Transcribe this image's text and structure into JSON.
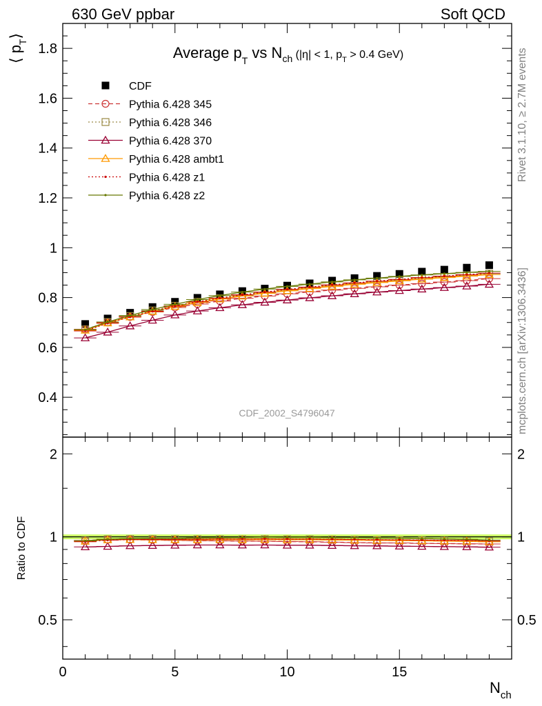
{
  "header": {
    "left": "630 GeV ppbar",
    "right": "Soft QCD"
  },
  "side_labels": {
    "rivet": "Rivet 3.1.10, ≥ 2.7M events",
    "mcplots": "mcplots.cern.ch [arXiv:1306.3436]"
  },
  "watermark": "CDF_2002_S4796047",
  "chart_data": [
    {
      "type": "scatter",
      "panel": "main",
      "title": {
        "main": "Average p",
        "main_sub": "T",
        "vs": " vs N",
        "vs_sub": "ch",
        "cut_a": " (|η| < 1, p",
        "cut_sub": "T",
        "cut_b": " > 0.4 GeV)"
      },
      "ylabel": "⟨ p",
      "ylabel_sub": "T",
      "ylabel_end": "⟩",
      "xlim": [
        0,
        20
      ],
      "ylim": [
        0.24,
        1.9
      ],
      "yticks": [
        0.4,
        0.6,
        0.8,
        1.0,
        1.2,
        1.4,
        1.6,
        1.8
      ],
      "ytick_labels": [
        "0.4",
        "0.6",
        "0.8",
        "1",
        "1.2",
        "1.4",
        "1.6",
        "1.8"
      ],
      "legend_position": "top-left",
      "x": [
        1,
        2,
        3,
        4,
        5,
        6,
        7,
        8,
        9,
        10,
        11,
        12,
        13,
        14,
        15,
        16,
        17,
        18,
        19
      ],
      "series": [
        {
          "name": "CDF",
          "color": "#000000",
          "marker": "square",
          "line": "none",
          "values": [
            0.694,
            0.716,
            0.739,
            0.762,
            0.783,
            0.799,
            0.813,
            0.826,
            0.836,
            0.848,
            0.857,
            0.868,
            0.878,
            0.887,
            0.895,
            0.904,
            0.912,
            0.92,
            0.93
          ]
        },
        {
          "name": "Pythia 6.428 345",
          "color": "#cc3333",
          "marker": "circle",
          "line": "dashed",
          "values": [
            0.673,
            0.7,
            0.722,
            0.742,
            0.76,
            0.774,
            0.786,
            0.797,
            0.806,
            0.815,
            0.823,
            0.83,
            0.837,
            0.843,
            0.85,
            0.856,
            0.862,
            0.868,
            0.876
          ]
        },
        {
          "name": "Pythia 6.428 346",
          "color": "#998844",
          "marker": "square-open",
          "line": "dotted",
          "values": [
            0.672,
            0.702,
            0.726,
            0.748,
            0.767,
            0.783,
            0.797,
            0.809,
            0.82,
            0.83,
            0.839,
            0.848,
            0.856,
            0.863,
            0.87,
            0.877,
            0.883,
            0.889,
            0.896
          ]
        },
        {
          "name": "Pythia 6.428 370",
          "color": "#990033",
          "marker": "triangle-open",
          "line": "solid",
          "values": [
            0.638,
            0.661,
            0.686,
            0.709,
            0.73,
            0.746,
            0.759,
            0.771,
            0.781,
            0.79,
            0.799,
            0.807,
            0.815,
            0.822,
            0.828,
            0.834,
            0.84,
            0.846,
            0.853
          ]
        },
        {
          "name": "Pythia 6.428 ambt1",
          "color": "#ff9900",
          "marker": "triangle-open",
          "line": "solid",
          "values": [
            0.669,
            0.698,
            0.722,
            0.744,
            0.764,
            0.78,
            0.794,
            0.806,
            0.817,
            0.827,
            0.836,
            0.845,
            0.853,
            0.86,
            0.867,
            0.874,
            0.88,
            0.886,
            0.892
          ]
        },
        {
          "name": "Pythia 6.428 z1",
          "color": "#cc0000",
          "marker": "dot",
          "line": "dotted",
          "values": [
            0.666,
            0.697,
            0.722,
            0.745,
            0.766,
            0.783,
            0.798,
            0.811,
            0.822,
            0.833,
            0.842,
            0.851,
            0.859,
            0.866,
            0.873,
            0.88,
            0.886,
            0.892,
            0.898
          ]
        },
        {
          "name": "Pythia 6.428 z2",
          "color": "#667700",
          "marker": "dot",
          "line": "solid",
          "values": [
            0.671,
            0.702,
            0.728,
            0.752,
            0.773,
            0.792,
            0.808,
            0.822,
            0.834,
            0.845,
            0.854,
            0.863,
            0.871,
            0.878,
            0.885,
            0.891,
            0.896,
            0.901,
            0.905
          ]
        }
      ]
    },
    {
      "type": "line",
      "panel": "ratio",
      "ylabel": "Ratio to CDF",
      "xlabel": "N",
      "xlabel_sub": "ch",
      "xlim": [
        0,
        20
      ],
      "ylim": [
        0.36,
        2.3
      ],
      "log_scale_y": true,
      "yticks": [
        0.5,
        1,
        2
      ],
      "ytick_labels": [
        "0.5",
        "1",
        "2"
      ],
      "xticks": [
        0,
        5,
        10,
        15
      ],
      "xtick_labels": [
        "0",
        "5",
        "10",
        "15"
      ],
      "reference_band": {
        "color": "#ccff66",
        "low": 0.98,
        "high": 1.02
      },
      "x": [
        1,
        2,
        3,
        4,
        5,
        6,
        7,
        8,
        9,
        10,
        11,
        12,
        13,
        14,
        15,
        16,
        17,
        18,
        19
      ],
      "series": [
        {
          "name": "Pythia 6.428 345",
          "color": "#cc3333",
          "marker": "circle",
          "line": "dashed",
          "values": [
            0.97,
            0.978,
            0.977,
            0.974,
            0.971,
            0.969,
            0.967,
            0.965,
            0.964,
            0.961,
            0.96,
            0.956,
            0.953,
            0.95,
            0.95,
            0.947,
            0.945,
            0.943,
            0.942
          ]
        },
        {
          "name": "Pythia 6.428 346",
          "color": "#998844",
          "marker": "square-open",
          "line": "dotted",
          "values": [
            0.968,
            0.98,
            0.982,
            0.982,
            0.98,
            0.98,
            0.98,
            0.979,
            0.981,
            0.979,
            0.979,
            0.977,
            0.975,
            0.973,
            0.972,
            0.97,
            0.968,
            0.966,
            0.963
          ]
        },
        {
          "name": "Pythia 6.428 370",
          "color": "#990033",
          "marker": "triangle-open",
          "line": "solid",
          "values": [
            0.919,
            0.923,
            0.928,
            0.93,
            0.932,
            0.934,
            0.934,
            0.933,
            0.934,
            0.932,
            0.932,
            0.93,
            0.928,
            0.927,
            0.925,
            0.923,
            0.921,
            0.92,
            0.917
          ]
        },
        {
          "name": "Pythia 6.428 ambt1",
          "color": "#ff9900",
          "marker": "triangle-open",
          "line": "solid",
          "values": [
            0.964,
            0.975,
            0.977,
            0.976,
            0.976,
            0.976,
            0.977,
            0.976,
            0.977,
            0.975,
            0.975,
            0.974,
            0.972,
            0.97,
            0.969,
            0.967,
            0.965,
            0.963,
            0.959
          ]
        },
        {
          "name": "Pythia 6.428 z1",
          "color": "#cc0000",
          "marker": "dot",
          "line": "dotted",
          "values": [
            0.96,
            0.973,
            0.977,
            0.978,
            0.978,
            0.98,
            0.982,
            0.982,
            0.983,
            0.982,
            0.982,
            0.98,
            0.978,
            0.976,
            0.975,
            0.973,
            0.971,
            0.97,
            0.966
          ]
        },
        {
          "name": "Pythia 6.428 z2",
          "color": "#667700",
          "marker": "dot",
          "line": "solid",
          "values": [
            0.967,
            0.98,
            0.985,
            0.987,
            0.987,
            0.991,
            0.994,
            0.995,
            0.998,
            0.996,
            0.997,
            0.994,
            0.992,
            0.99,
            0.989,
            0.986,
            0.982,
            0.979,
            0.973
          ]
        }
      ]
    }
  ]
}
